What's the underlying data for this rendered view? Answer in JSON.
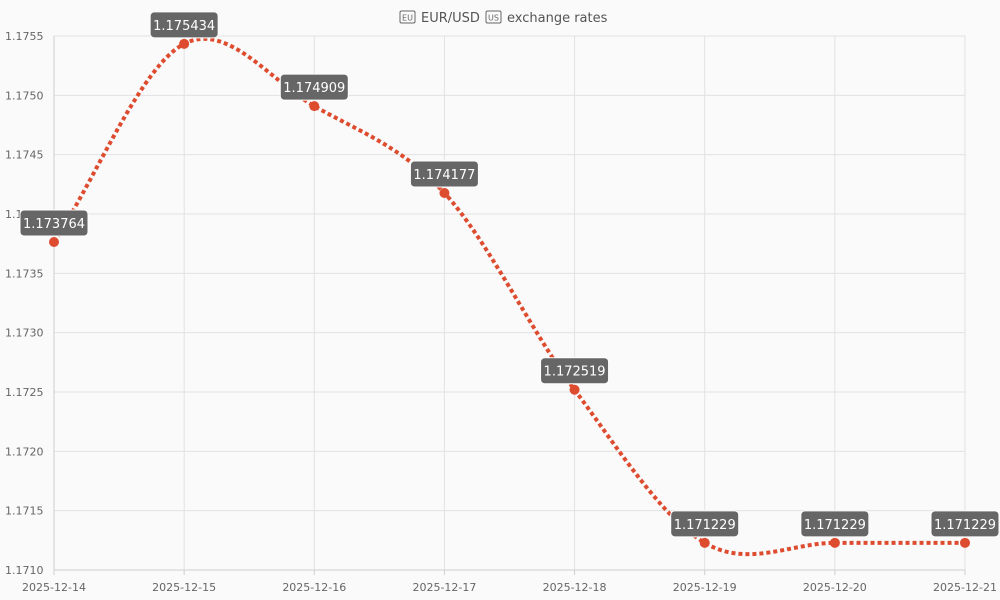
{
  "title": {
    "text": "EUR/USD exchange rates",
    "pair_left_icon": "eu-flag-icon",
    "pair_right_icon": "us-flag-icon",
    "prefix_text": "EUR/USD",
    "suffix_text": "exchange rates"
  },
  "colors": {
    "series": "#dd4c2f",
    "label_bg": "#666666",
    "grid": "#e2e2e2",
    "background": "#fafafa"
  },
  "chart_data": {
    "type": "line",
    "title": "EUR/USD exchange rates",
    "xlabel": "",
    "ylabel": "",
    "x": [
      "2025-12-14",
      "2025-12-15",
      "2025-12-16",
      "2025-12-17",
      "2025-12-18",
      "2025-12-19",
      "2025-12-20",
      "2025-12-21"
    ],
    "series": [
      {
        "values": [
          1.173764,
          1.175434,
          1.174909,
          1.174177,
          1.172519,
          1.171229,
          1.171229,
          1.171229
        ],
        "data_labels": [
          "1.173764",
          "1.175434",
          "1.174909",
          "1.174177",
          "1.172519",
          "1.171229",
          "1.171229",
          "1.171229"
        ]
      }
    ],
    "ylim": [
      1.171,
      1.1755
    ],
    "yticks": [
      "1.1755",
      "1.1750",
      "1.1745",
      "1.1740",
      "1.1735",
      "1.1730",
      "1.1725",
      "1.1720",
      "1.1715",
      "1.1710"
    ],
    "ytick_values": [
      1.1755,
      1.175,
      1.1745,
      1.174,
      1.1735,
      1.173,
      1.1725,
      1.172,
      1.1715,
      1.171
    ],
    "grid": true,
    "legend": "none",
    "line_style": "dashed, smooth"
  }
}
